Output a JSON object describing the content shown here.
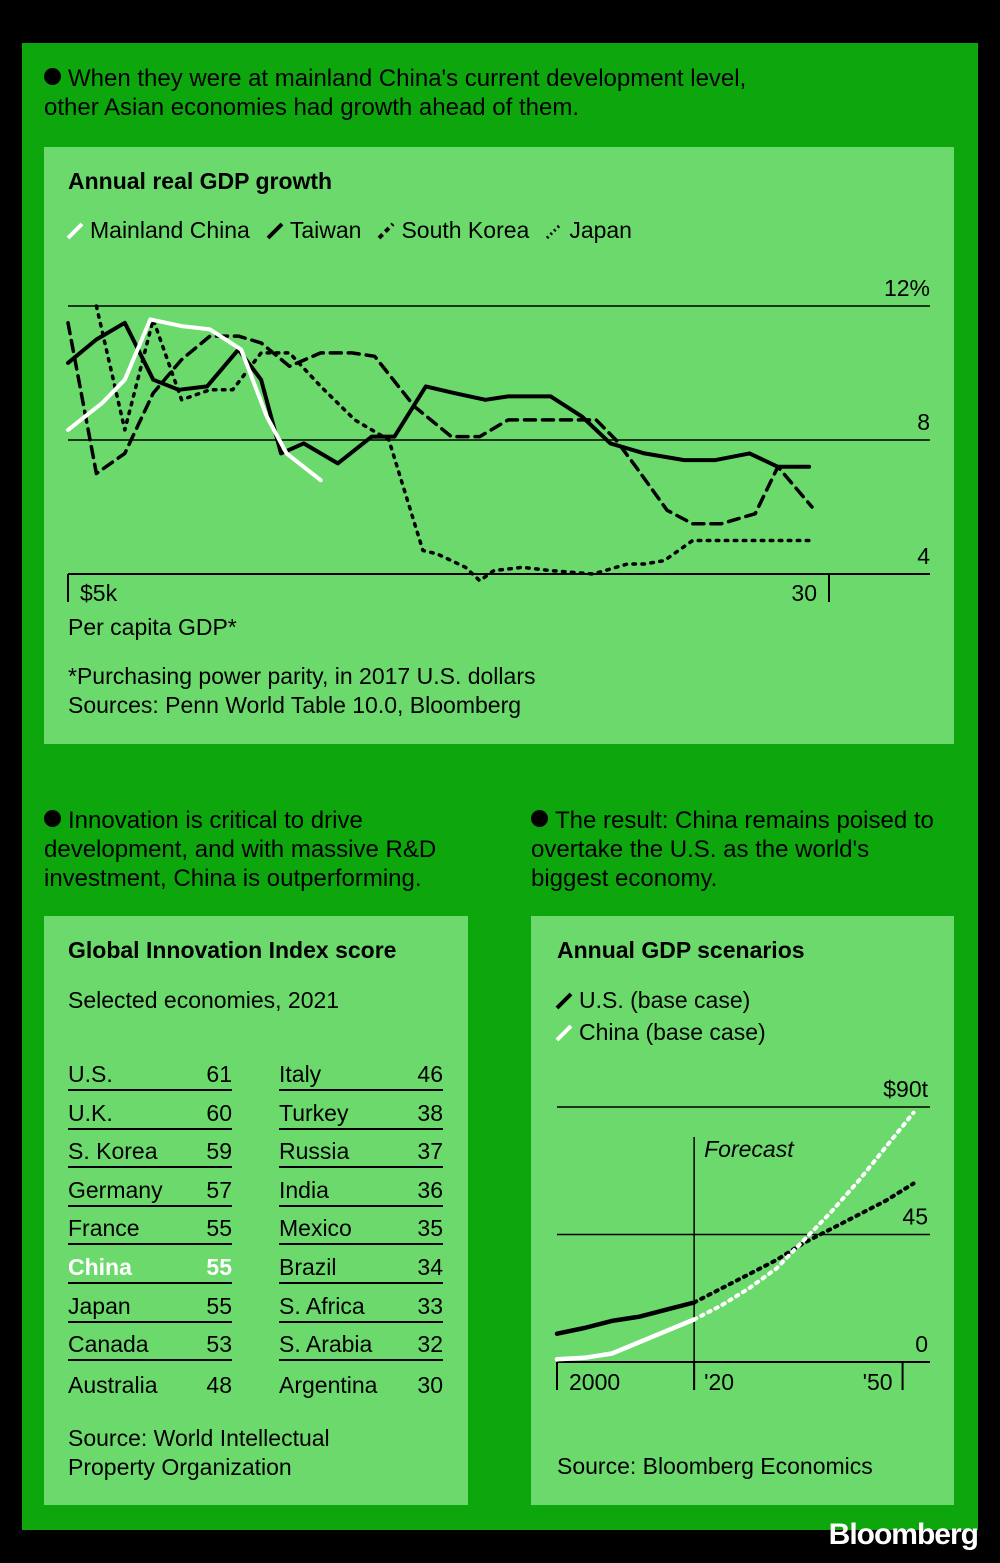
{
  "colors": {
    "background": "#000000",
    "frame": "#0da70d",
    "panel": "#6cd96c",
    "highlight": "#ffffff"
  },
  "section1": {
    "bullet": "When they were at mainland China's current development level, other Asian economies had growth ahead of them.",
    "title": "Annual real GDP growth",
    "xlabel": "Per capita GDP*",
    "footnote": "*Purchasing power parity, in 2017 U.S. dollars",
    "source": "Sources: Penn World Table 10.0, Bloomberg"
  },
  "section2": {
    "bullet": "Innovation is critical to drive development, and with massive R&D investment, China is outperforming.",
    "title": "Global Innovation Index score",
    "subtitle": "Selected economies, 2021",
    "left": [
      {
        "name": "U.S.",
        "score": "61"
      },
      {
        "name": "U.K.",
        "score": "60"
      },
      {
        "name": "S. Korea",
        "score": "59"
      },
      {
        "name": "Germany",
        "score": "57"
      },
      {
        "name": "France",
        "score": "55"
      },
      {
        "name": "China",
        "score": "55"
      },
      {
        "name": "Japan",
        "score": "55"
      },
      {
        "name": "Canada",
        "score": "53"
      },
      {
        "name": "Australia",
        "score": "48"
      }
    ],
    "right": [
      {
        "name": "Italy",
        "score": "46"
      },
      {
        "name": "Turkey",
        "score": "38"
      },
      {
        "name": "Russia",
        "score": "37"
      },
      {
        "name": "India",
        "score": "36"
      },
      {
        "name": "Mexico",
        "score": "35"
      },
      {
        "name": "Brazil",
        "score": "34"
      },
      {
        "name": "S. Africa",
        "score": "33"
      },
      {
        "name": "S. Arabia",
        "score": "32"
      },
      {
        "name": "Argentina",
        "score": "30"
      }
    ],
    "highlighted": "China",
    "source": "Source: World Intellectual Property Organization"
  },
  "section3": {
    "bullet": "The result: China remains poised to overtake the U.S. as the world's biggest economy.",
    "title": "Annual GDP scenarios",
    "forecast_label": "Forecast",
    "source": "Source: Bloomberg Economics"
  },
  "brand": "Bloomberg",
  "chart_data": [
    {
      "type": "line",
      "title": "Annual real GDP growth",
      "xlabel": "Per capita GDP*",
      "ylabel": "",
      "x_tick_labels": [
        "$5k",
        "30"
      ],
      "y_tick_labels": [
        "12%",
        "8",
        "4"
      ],
      "ylim": [
        4,
        12
      ],
      "xlim": [
        5,
        31.8
      ],
      "grid": true,
      "legend_position": "top-left",
      "series": [
        {
          "name": "Mainland China",
          "style": "solid",
          "color": "#ffffff",
          "x": [
            5.0,
            6.2,
            7.0,
            7.9,
            9.0,
            10.0,
            11.1,
            12.0,
            12.7,
            13.9
          ],
          "y": [
            8.3,
            9.1,
            9.8,
            11.6,
            11.4,
            11.3,
            10.7,
            8.7,
            7.6,
            6.8
          ]
        },
        {
          "name": "Taiwan",
          "style": "solid",
          "color": "#000000",
          "x": [
            5.0,
            6.0,
            7.0,
            8.0,
            8.9,
            9.9,
            11.0,
            11.8,
            12.5,
            13.3,
            14.5,
            15.7,
            16.5,
            17.6,
            18.6,
            19.7,
            20.5,
            22.0,
            23.1,
            24.1,
            25.3,
            26.7,
            27.8,
            29.0,
            30.0,
            31.1
          ],
          "y": [
            10.3,
            11.0,
            11.5,
            9.8,
            9.5,
            9.6,
            10.7,
            9.8,
            7.6,
            7.9,
            7.3,
            8.1,
            8.1,
            9.6,
            9.4,
            9.2,
            9.3,
            9.3,
            8.7,
            7.9,
            7.6,
            7.4,
            7.4,
            7.6,
            7.2,
            7.2
          ]
        },
        {
          "name": "South Korea",
          "style": "dashed",
          "color": "#000000",
          "x": [
            5.0,
            6.0,
            7.0,
            8.0,
            9.0,
            10.0,
            11.0,
            11.8,
            12.8,
            13.9,
            15.0,
            15.8,
            17.2,
            18.5,
            19.5,
            20.5,
            22.0,
            23.6,
            24.3,
            25.0,
            26.1,
            27.0,
            28.0,
            29.2,
            30.0,
            31.2
          ],
          "y": [
            11.5,
            7.0,
            7.6,
            9.4,
            10.4,
            11.1,
            11.1,
            10.9,
            10.2,
            10.6,
            10.6,
            10.5,
            9.0,
            8.1,
            8.1,
            8.6,
            8.6,
            8.6,
            8.0,
            7.2,
            5.9,
            5.5,
            5.5,
            5.8,
            7.2,
            6.0
          ]
        },
        {
          "name": "Japan",
          "style": "dotted",
          "color": "#000000",
          "x": [
            6.0,
            7.0,
            8.0,
            9.0,
            10.0,
            10.8,
            11.8,
            12.8,
            13.9,
            15.1,
            16.3,
            17.5,
            18.0,
            19.0,
            19.5,
            20.0,
            21.0,
            22.0,
            23.5,
            24.7,
            25.3,
            26.0,
            27.0,
            28.5,
            30.0,
            31.2
          ],
          "y": [
            12.0,
            8.3,
            11.6,
            9.2,
            9.5,
            9.5,
            10.6,
            10.6,
            9.6,
            8.6,
            8.0,
            4.7,
            4.6,
            4.2,
            3.8,
            4.1,
            4.2,
            4.1,
            4.0,
            4.3,
            4.3,
            4.4,
            5.0,
            5.0,
            5.0,
            5.0
          ]
        }
      ]
    },
    {
      "type": "line",
      "title": "Annual GDP scenarios",
      "xlabel": "",
      "ylabel": "",
      "x_tick_labels": [
        "2000",
        "'20",
        "'50"
      ],
      "y_tick_labels": [
        "$90t",
        "45",
        "0"
      ],
      "ylim": [
        0,
        90
      ],
      "xlim": [
        1995,
        2063
      ],
      "grid": true,
      "legend_position": "top-left",
      "forecast_start": 2020,
      "series": [
        {
          "name": "U.S. (base case)",
          "color": "#000000",
          "historical": {
            "x": [
              1995,
              2000,
              2005,
              2010,
              2015,
              2020
            ],
            "y": [
              10,
              12,
              14.5,
              16,
              18.5,
              21
            ]
          },
          "forecast": {
            "x": [
              2020,
              2025,
              2030,
              2035,
              2040,
              2045,
              2050,
              2055,
              2060
            ],
            "y": [
              21,
              26,
              31,
              36,
              42,
              47,
              52,
              57,
              63
            ]
          }
        },
        {
          "name": "China (base case)",
          "color": "#ffffff",
          "historical": {
            "x": [
              1995,
              2000,
              2005,
              2010,
              2015,
              2020
            ],
            "y": [
              1,
              1.5,
              3,
              7,
              11,
              15
            ]
          },
          "forecast": {
            "x": [
              2020,
              2025,
              2030,
              2035,
              2040,
              2045,
              2050,
              2055,
              2060
            ],
            "y": [
              15,
              20,
              26,
              33,
              43,
              53,
              64,
              76,
              88
            ]
          }
        }
      ]
    }
  ]
}
